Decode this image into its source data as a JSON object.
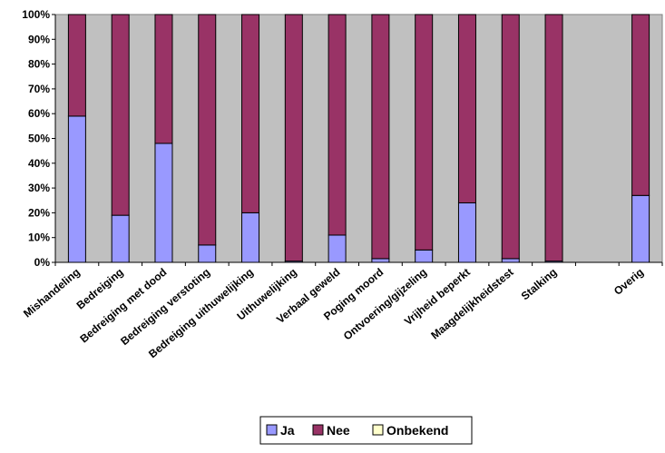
{
  "colors": {
    "plot_background": "#c0c0c0",
    "ja": "#9999ff",
    "nee": "#993366",
    "onbekend": "#ffffcc"
  },
  "chart_data": {
    "type": "bar",
    "stacked": true,
    "percent": true,
    "title": "",
    "xlabel": "",
    "ylabel": "",
    "ylim": [
      0,
      100
    ],
    "y_ticks": [
      "0%",
      "10%",
      "20%",
      "30%",
      "40%",
      "50%",
      "60%",
      "70%",
      "80%",
      "90%",
      "100%"
    ],
    "grid": false,
    "legend_position": "bottom",
    "categories": [
      "Mishandeling",
      "Bedreiging",
      "Bedreiging met dood",
      "Bedreiging verstoting",
      "Bedreiging uithuwelijking",
      "Uithuwelijking",
      "Verbaal geweld",
      "Poging moord",
      "Ontvoering/gijzeling",
      "Vrijheid beperkt",
      "Maagdelijkheidstest",
      "Stalking",
      "",
      "Overig"
    ],
    "series": [
      {
        "name": "Ja",
        "values": [
          59,
          19,
          48,
          7,
          20,
          0.5,
          11,
          1.5,
          5,
          24,
          1.5,
          0.5,
          null,
          27
        ]
      },
      {
        "name": "Nee",
        "values": [
          41,
          81,
          52,
          93,
          80,
          99.5,
          89,
          98.5,
          95,
          76,
          98.5,
          99.5,
          null,
          73
        ]
      },
      {
        "name": "Onbekend",
        "values": [
          0,
          0,
          0,
          0,
          0,
          0,
          0,
          0,
          0,
          0,
          0,
          0,
          null,
          0
        ]
      }
    ]
  }
}
